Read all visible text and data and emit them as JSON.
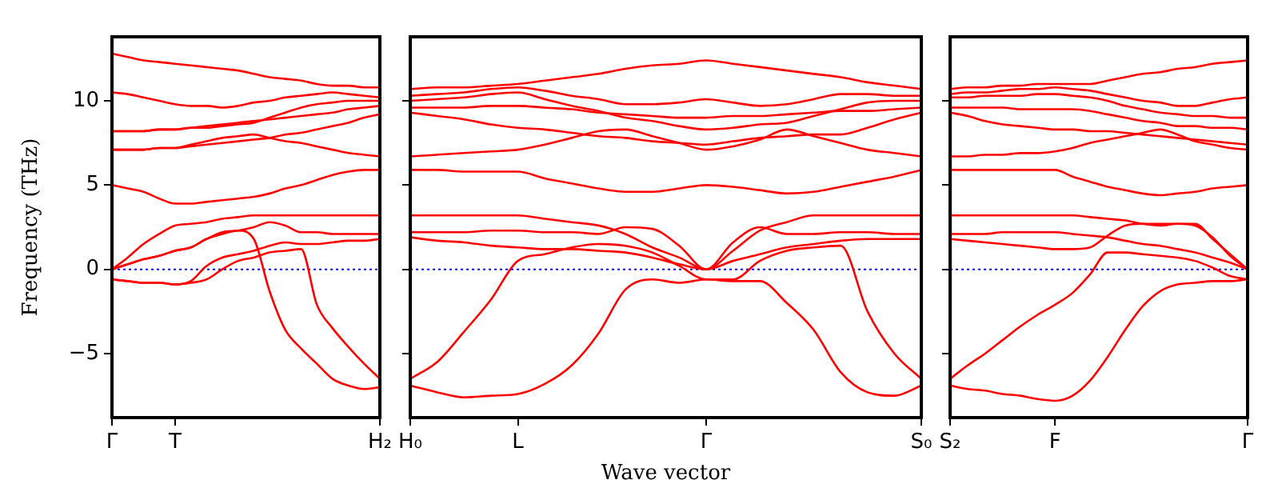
{
  "chart_data": [
    {
      "type": "line",
      "ylabel": "Frequency (THz)",
      "categories": [
        "Γ",
        null,
        null,
        null,
        "T",
        null,
        null,
        null,
        null,
        null,
        null,
        null,
        null,
        null,
        null,
        null,
        null,
        "H₂"
      ],
      "ylim": [
        -8.8,
        13.8
      ],
      "yticks": [
        -5,
        0,
        5,
        10
      ],
      "marker": "none",
      "line_style": "solid",
      "ref_lines": [
        {
          "axis": "y",
          "value": 0,
          "color": "#0000ff",
          "line_style": "dotted"
        }
      ],
      "series": [
        {
          "color": "#ff0000",
          "values": [
            12.8,
            12.6,
            12.4,
            12.3,
            12.2,
            12.1,
            12.0,
            11.9,
            11.8,
            11.6,
            11.4,
            11.3,
            11.2,
            11.0,
            10.9,
            10.9,
            10.8,
            10.8
          ]
        },
        {
          "color": "#ff0000",
          "values": [
            10.5,
            10.4,
            10.2,
            10.0,
            9.8,
            9.7,
            9.7,
            9.6,
            9.7,
            9.9,
            10.0,
            10.2,
            10.3,
            10.4,
            10.5,
            10.4,
            10.3,
            10.2
          ]
        },
        {
          "color": "#ff0000",
          "values": [
            8.2,
            8.2,
            8.2,
            8.3,
            8.3,
            8.4,
            8.4,
            8.5,
            8.6,
            8.7,
            9.0,
            9.3,
            9.6,
            9.8,
            9.9,
            10.0,
            10.0,
            10.0
          ]
        },
        {
          "color": "#ff0000",
          "values": [
            8.2,
            8.2,
            8.2,
            8.3,
            8.3,
            8.4,
            8.5,
            8.6,
            8.7,
            8.8,
            8.9,
            9.0,
            9.1,
            9.2,
            9.3,
            9.5,
            9.6,
            9.7
          ]
        },
        {
          "color": "#ff0000",
          "values": [
            7.1,
            7.1,
            7.1,
            7.2,
            7.2,
            7.3,
            7.4,
            7.5,
            7.6,
            7.7,
            7.8,
            8.0,
            8.1,
            8.3,
            8.5,
            8.7,
            9.0,
            9.2
          ]
        },
        {
          "color": "#ff0000",
          "values": [
            7.1,
            7.1,
            7.1,
            7.2,
            7.2,
            7.4,
            7.6,
            7.8,
            7.9,
            8.0,
            7.8,
            7.6,
            7.5,
            7.3,
            7.1,
            6.9,
            6.8,
            6.7
          ]
        },
        {
          "color": "#ff0000",
          "values": [
            5.0,
            4.8,
            4.6,
            4.2,
            3.9,
            3.9,
            4.0,
            4.1,
            4.2,
            4.3,
            4.5,
            4.8,
            5.0,
            5.3,
            5.6,
            5.8,
            5.9,
            5.9
          ]
        },
        {
          "color": "#ff0000",
          "values": [
            0,
            0.7,
            1.5,
            2.1,
            2.6,
            2.7,
            2.8,
            3.0,
            3.1,
            3.2,
            3.2,
            3.2,
            3.2,
            3.2,
            3.2,
            3.2,
            3.2,
            3.2
          ]
        },
        {
          "color": "#ff0000",
          "values": [
            0,
            0.3,
            0.6,
            0.8,
            1.1,
            1.3,
            1.8,
            2.2,
            2.3,
            2.5,
            2.8,
            2.6,
            2.2,
            2.2,
            2.1,
            2.1,
            2.1,
            2.1
          ]
        },
        {
          "color": "#ff0000",
          "values": [
            0,
            0.3,
            0.6,
            0.8,
            1.1,
            1.3,
            1.8,
            2.1,
            2.3,
            1.8,
            -1.3,
            -3.6,
            -4.7,
            -5.6,
            -6.5,
            -6.9,
            -7.1,
            -7.0
          ]
        },
        {
          "color": "#ff0000",
          "values": [
            -0.6,
            -0.7,
            -0.8,
            -0.8,
            -0.9,
            -0.7,
            0.2,
            0.7,
            0.9,
            1.1,
            1.4,
            1.6,
            1.5,
            1.5,
            1.6,
            1.7,
            1.7,
            1.8
          ]
        },
        {
          "color": "#ff0000",
          "values": [
            -0.6,
            -0.7,
            -0.8,
            -0.8,
            -0.9,
            -0.8,
            -0.6,
            0,
            0.5,
            0.7,
            1.0,
            1.1,
            1.2,
            -2.1,
            -3.5,
            -4.6,
            -5.6,
            -6.5
          ]
        }
      ]
    },
    {
      "type": "line",
      "xlabel": "Wave vector",
      "tick_labels": "x",
      "categories": [
        "H₀",
        null,
        null,
        null,
        "L",
        null,
        null,
        null,
        null,
        null,
        null,
        "Γ",
        null,
        null,
        null,
        null,
        null,
        null,
        null,
        "S₀"
      ],
      "ylim": [
        -8.8,
        13.8
      ],
      "yticks": [
        -5,
        0,
        5,
        10
      ],
      "marker": "none",
      "line_style": "solid",
      "ref_lines": [
        {
          "axis": "y",
          "value": 0,
          "color": "#0000ff",
          "line_style": "dotted"
        }
      ],
      "series": [
        {
          "color": "#ff0000",
          "values": [
            10.7,
            10.8,
            10.8,
            10.9,
            11.0,
            11.2,
            11.4,
            11.6,
            11.9,
            12.1,
            12.2,
            12.4,
            12.2,
            12.0,
            11.8,
            11.6,
            11.4,
            11.1,
            10.9,
            10.7
          ]
        },
        {
          "color": "#ff0000",
          "values": [
            10.3,
            10.4,
            10.5,
            10.7,
            10.8,
            10.6,
            10.3,
            10.1,
            9.8,
            9.8,
            9.9,
            10.1,
            9.9,
            9.7,
            9.8,
            10.1,
            10.4,
            10.4,
            10.3,
            10.3
          ]
        },
        {
          "color": "#ff0000",
          "values": [
            10.0,
            10.1,
            10.2,
            10.4,
            10.5,
            10.1,
            9.7,
            9.4,
            9.0,
            8.8,
            8.5,
            8.3,
            8.4,
            8.6,
            8.7,
            9.1,
            9.5,
            9.9,
            10.0,
            10.0
          ]
        },
        {
          "color": "#ff0000",
          "values": [
            9.6,
            9.6,
            9.6,
            9.7,
            9.7,
            9.6,
            9.5,
            9.3,
            9.2,
            9.1,
            9.0,
            9.0,
            9.1,
            9.1,
            9.2,
            9.3,
            9.4,
            9.4,
            9.5,
            9.6
          ]
        },
        {
          "color": "#ff0000",
          "values": [
            9.3,
            9.1,
            8.9,
            8.6,
            8.4,
            8.3,
            8.1,
            7.9,
            7.8,
            7.6,
            7.5,
            7.4,
            7.6,
            7.8,
            7.9,
            8.0,
            8.0,
            8.4,
            8.9,
            9.3
          ]
        },
        {
          "color": "#ff0000",
          "values": [
            6.7,
            6.8,
            6.9,
            7.0,
            7.1,
            7.4,
            7.8,
            8.2,
            8.3,
            7.9,
            7.5,
            7.1,
            7.3,
            7.7,
            8.3,
            7.9,
            7.5,
            7.1,
            6.9,
            6.7
          ]
        },
        {
          "color": "#ff0000",
          "values": [
            5.9,
            5.9,
            5.8,
            5.8,
            5.8,
            5.4,
            5.1,
            4.8,
            4.6,
            4.6,
            4.8,
            5.0,
            4.9,
            4.7,
            4.5,
            4.6,
            4.9,
            5.2,
            5.5,
            5.9
          ]
        },
        {
          "color": "#ff0000",
          "values": [
            3.2,
            3.2,
            3.2,
            3.2,
            3.2,
            3.0,
            2.8,
            2.6,
            2.1,
            1.3,
            0.7,
            0,
            1.1,
            2.3,
            2.8,
            3.2,
            3.2,
            3.2,
            3.2,
            3.2
          ]
        },
        {
          "color": "#ff0000",
          "values": [
            2.2,
            2.2,
            2.2,
            2.3,
            2.3,
            2.2,
            2.2,
            2.1,
            2.5,
            2.4,
            1.4,
            0,
            1.6,
            2.5,
            2.1,
            2.1,
            2.2,
            2.2,
            2.1,
            2.1
          ]
        },
        {
          "color": "#ff0000",
          "values": [
            1.9,
            1.7,
            1.6,
            1.4,
            1.3,
            1.2,
            1.2,
            1.1,
            1.0,
            0.7,
            0.3,
            0,
            0.5,
            0.9,
            1.3,
            1.5,
            1.7,
            1.8,
            1.8,
            1.8
          ]
        },
        {
          "color": "#ff0000",
          "values": [
            -6.5,
            -5.5,
            -3.7,
            -1.8,
            0.5,
            0.9,
            1.3,
            1.5,
            1.4,
            1.0,
            0.2,
            -0.6,
            -0.6,
            0.5,
            1.1,
            1.3,
            1.4,
            -2.5,
            -5.0,
            -6.5
          ]
        },
        {
          "color": "#ff0000",
          "values": [
            -6.9,
            -7.3,
            -7.6,
            -7.5,
            -7.4,
            -6.8,
            -5.7,
            -3.8,
            -1.2,
            -0.6,
            -0.8,
            -0.6,
            -0.7,
            -0.7,
            -2.0,
            -3.6,
            -6.1,
            -7.3,
            -7.5,
            -6.9
          ]
        }
      ]
    },
    {
      "type": "line",
      "tick_labels": "x",
      "categories": [
        "S₂",
        null,
        null,
        null,
        null,
        null,
        "F",
        null,
        null,
        null,
        null,
        null,
        null,
        null,
        null,
        null,
        null,
        "Γ"
      ],
      "ylim": [
        -8.8,
        13.8
      ],
      "yticks": [
        -5,
        0,
        5,
        10
      ],
      "marker": "none",
      "line_style": "solid",
      "ref_lines": [
        {
          "axis": "y",
          "value": 0,
          "color": "#0000ff",
          "line_style": "dotted"
        }
      ],
      "series": [
        {
          "color": "#ff0000",
          "values": [
            10.7,
            10.8,
            10.8,
            10.9,
            10.9,
            11.0,
            11.0,
            11.0,
            11.0,
            11.2,
            11.4,
            11.6,
            11.7,
            11.9,
            12.0,
            12.2,
            12.3,
            12.4
          ]
        },
        {
          "color": "#ff0000",
          "values": [
            10.4,
            10.5,
            10.5,
            10.6,
            10.7,
            10.7,
            10.8,
            10.7,
            10.6,
            10.4,
            10.2,
            10.0,
            9.9,
            9.7,
            9.7,
            9.9,
            10.1,
            10.2
          ]
        },
        {
          "color": "#ff0000",
          "values": [
            10.2,
            10.2,
            10.3,
            10.3,
            10.3,
            10.4,
            10.4,
            10.3,
            10.2,
            10.0,
            9.7,
            9.5,
            9.3,
            9.2,
            9.1,
            9.1,
            9.0,
            9.0
          ]
        },
        {
          "color": "#ff0000",
          "values": [
            9.6,
            9.6,
            9.6,
            9.6,
            9.5,
            9.5,
            9.5,
            9.5,
            9.4,
            9.2,
            9.0,
            8.8,
            8.7,
            8.5,
            8.5,
            8.4,
            8.4,
            8.3
          ]
        },
        {
          "color": "#ff0000",
          "values": [
            9.3,
            9.1,
            8.8,
            8.6,
            8.5,
            8.4,
            8.3,
            8.3,
            8.2,
            8.2,
            8.1,
            8.0,
            7.9,
            7.8,
            7.7,
            7.6,
            7.5,
            7.4
          ]
        },
        {
          "color": "#ff0000",
          "values": [
            6.7,
            6.7,
            6.8,
            6.8,
            6.9,
            6.9,
            7.0,
            7.2,
            7.5,
            7.7,
            7.9,
            8.1,
            8.3,
            8.0,
            7.6,
            7.4,
            7.2,
            7.1
          ]
        },
        {
          "color": "#ff0000",
          "values": [
            5.9,
            5.9,
            5.9,
            5.9,
            5.9,
            5.9,
            5.9,
            5.5,
            5.2,
            4.9,
            4.7,
            4.5,
            4.4,
            4.5,
            4.6,
            4.8,
            4.9,
            5.0
          ]
        },
        {
          "color": "#ff0000",
          "values": [
            3.2,
            3.2,
            3.2,
            3.2,
            3.2,
            3.2,
            3.2,
            3.2,
            3.1,
            3.0,
            2.9,
            2.7,
            2.6,
            2.7,
            2.6,
            1.9,
            0.8,
            0
          ]
        },
        {
          "color": "#ff0000",
          "values": [
            2.1,
            2.1,
            2.1,
            2.2,
            2.2,
            2.2,
            2.2,
            2.1,
            2.0,
            1.9,
            1.7,
            1.5,
            1.4,
            1.2,
            1.0,
            0.7,
            0.4,
            0
          ]
        },
        {
          "color": "#ff0000",
          "values": [
            1.8,
            1.7,
            1.6,
            1.5,
            1.4,
            1.3,
            1.2,
            1.2,
            1.3,
            2.0,
            2.6,
            2.7,
            2.7,
            2.7,
            2.7,
            1.8,
            0.9,
            0
          ]
        },
        {
          "color": "#ff0000",
          "values": [
            -6.5,
            -5.7,
            -5.0,
            -4.2,
            -3.4,
            -2.7,
            -2.1,
            -1.4,
            -0.3,
            1.0,
            1.0,
            0.9,
            0.8,
            0.7,
            0.5,
            0.1,
            -0.4,
            -0.6
          ]
        },
        {
          "color": "#ff0000",
          "values": [
            -6.9,
            -7.1,
            -7.2,
            -7.4,
            -7.5,
            -7.7,
            -7.8,
            -7.5,
            -6.6,
            -5.2,
            -3.6,
            -2.2,
            -1.3,
            -0.9,
            -0.8,
            -0.7,
            -0.7,
            -0.6
          ]
        }
      ]
    }
  ]
}
